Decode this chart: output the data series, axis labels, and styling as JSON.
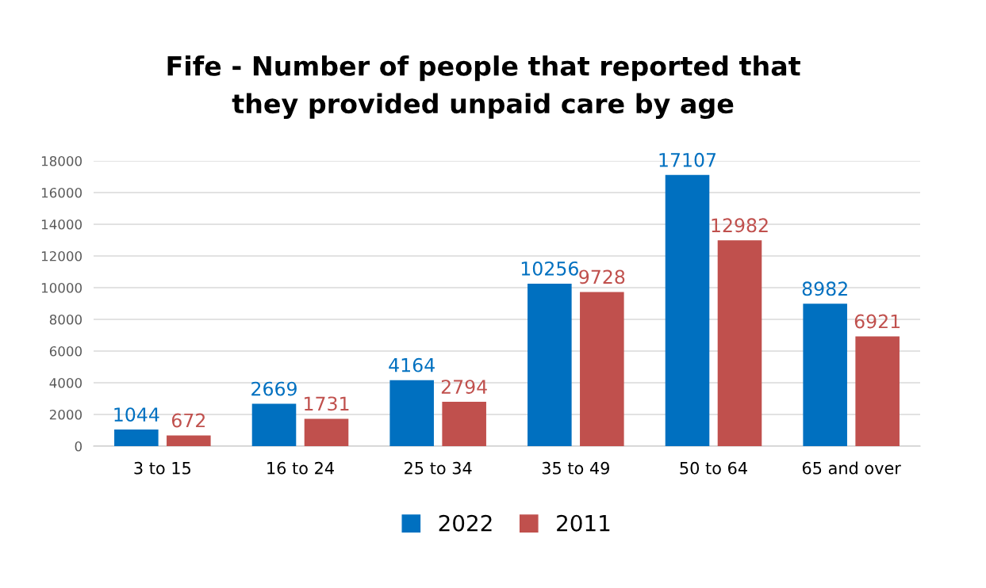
{
  "chart_data": {
    "type": "bar",
    "title": "Fife - Number of people that reported that\nthey provided unpaid care by age",
    "categories": [
      "3 to 15",
      "16 to 24",
      "25 to 34",
      "35 to 49",
      "50 to 64",
      "65 and over"
    ],
    "series": [
      {
        "name": "2022",
        "color": "#0070c0",
        "values": [
          1044,
          2669,
          4164,
          10256,
          17107,
          8982
        ]
      },
      {
        "name": "2011",
        "color": "#c0504d",
        "values": [
          672,
          1731,
          2794,
          9728,
          12982,
          6921
        ]
      }
    ],
    "ylim": [
      0,
      18000
    ],
    "yticks": [
      0,
      2000,
      4000,
      6000,
      8000,
      10000,
      12000,
      14000,
      16000,
      18000
    ],
    "grid": "y",
    "legend": "bottom",
    "data_labels": true
  }
}
